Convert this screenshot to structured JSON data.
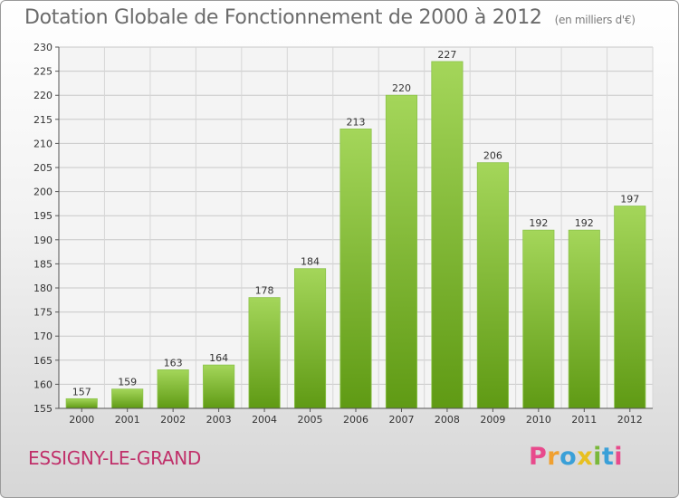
{
  "header": {
    "title": "Dotation Globale de Fonctionnement de 2000 à 2012",
    "unit_note": "(en milliers d'€)"
  },
  "footer": {
    "place_name": "ESSIGNY-LE-GRAND",
    "brand_logo": "Proxiti"
  },
  "colors": {
    "bar_light": "#a4d65a",
    "bar_dark": "#5f9a14",
    "place_name": "#c0306a",
    "axis_text": "#333333",
    "logo_letters": [
      "#e84a8c",
      "#f0a030",
      "#3aa0d8",
      "#e8c020",
      "#7ab83a",
      "#3aa0d8",
      "#e84a8c"
    ]
  },
  "chart_data": {
    "type": "bar",
    "categories": [
      "2000",
      "2001",
      "2002",
      "2003",
      "2004",
      "2005",
      "2006",
      "2007",
      "2008",
      "2009",
      "2010",
      "2011",
      "2012"
    ],
    "values": [
      157,
      159,
      163,
      164,
      178,
      184,
      213,
      220,
      227,
      206,
      192,
      192,
      197
    ],
    "title": "Dotation Globale de Fonctionnement de 2000 à 2012",
    "subtitle": "(en milliers d'€)",
    "xlabel": "",
    "ylabel": "",
    "ylim": [
      155,
      230
    ],
    "yticks": [
      155,
      160,
      165,
      170,
      175,
      180,
      185,
      190,
      195,
      200,
      205,
      210,
      215,
      220,
      225,
      230
    ],
    "grid": true,
    "data_labels": true
  }
}
